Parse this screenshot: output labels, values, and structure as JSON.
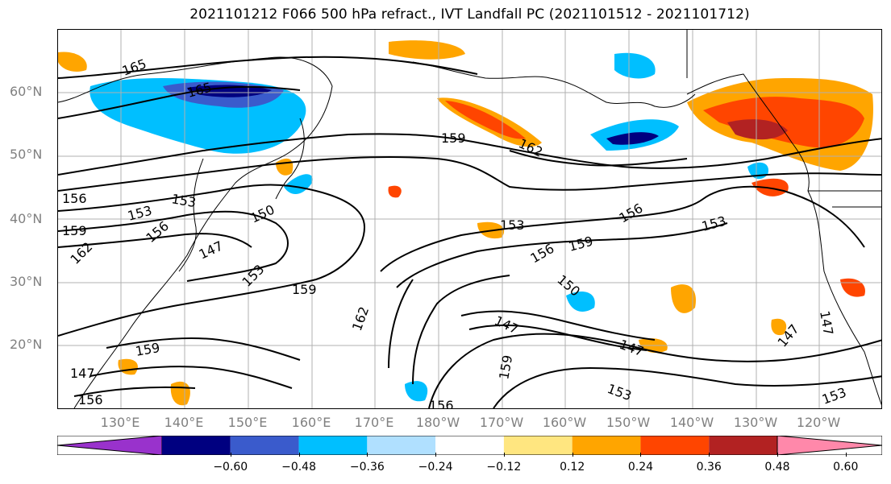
{
  "title": "2021101212 F066 500 hPa refract., IVT Landfall PC (2021101512 - 2021101712)",
  "lat_labels": [
    "60°N",
    "50°N",
    "40°N",
    "30°N",
    "20°N"
  ],
  "lon_labels": [
    "130°E",
    "140°E",
    "150°E",
    "160°E",
    "170°E",
    "180°W",
    "170°W",
    "160°W",
    "150°W",
    "140°W",
    "130°W",
    "120°W"
  ],
  "contour_labels": [
    "165",
    "165",
    "159",
    "162",
    "156",
    "153",
    "153",
    "159",
    "150",
    "147",
    "156",
    "162",
    "153",
    "159",
    "150",
    "153",
    "156",
    "159",
    "156",
    "153",
    "147",
    "162",
    "159",
    "147",
    "147",
    "156",
    "153",
    "159",
    "147",
    "156",
    "153",
    "147"
  ],
  "colorbar": {
    "ticks": [
      "−0.60",
      "−0.48",
      "−0.36",
      "−0.24",
      "−0.12",
      "0.12",
      "0.24",
      "0.36",
      "0.48",
      "0.60"
    ],
    "colors": [
      "#9932cc",
      "#000080",
      "#3a5bcc",
      "#00bfff",
      "#b0e0ff",
      "#ffffff",
      "#ffe680",
      "#ffa500",
      "#ff4500",
      "#b22222",
      "#ff88aa"
    ]
  },
  "colors": {
    "land": "#000000",
    "gridlines": "#b0b0b0",
    "axis_labels": "#808080"
  }
}
